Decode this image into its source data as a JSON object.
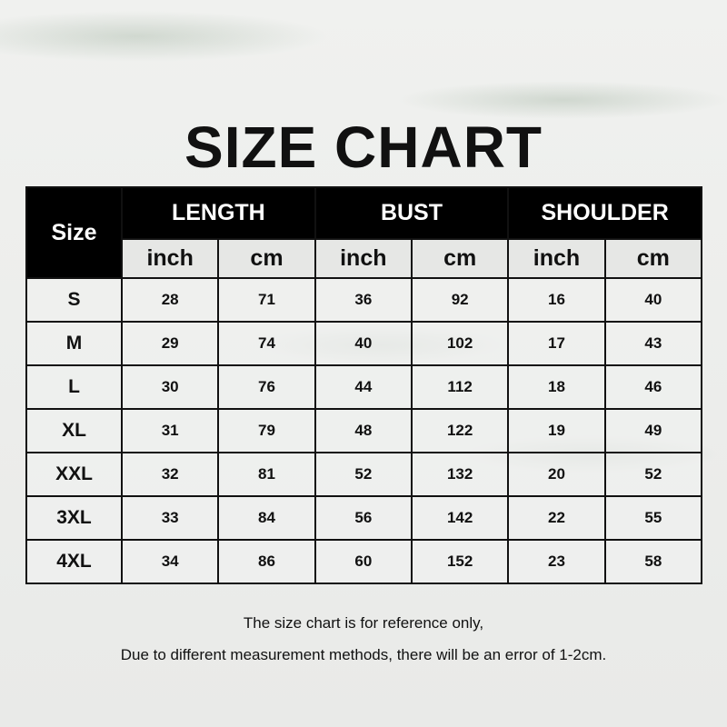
{
  "title": "SIZE CHART",
  "table": {
    "size_header": "Size",
    "groups": [
      "LENGTH",
      "BUST",
      "SHOULDER"
    ],
    "units": [
      "inch",
      "cm",
      "inch",
      "cm",
      "inch",
      "cm"
    ],
    "rows": [
      [
        "S",
        "28",
        "71",
        "36",
        "92",
        "16",
        "40"
      ],
      [
        "M",
        "29",
        "74",
        "40",
        "102",
        "17",
        "43"
      ],
      [
        "L",
        "30",
        "76",
        "44",
        "112",
        "18",
        "46"
      ],
      [
        "XL",
        "31",
        "79",
        "48",
        "122",
        "19",
        "49"
      ],
      [
        "XXL",
        "32",
        "81",
        "52",
        "132",
        "20",
        "52"
      ],
      [
        "3XL",
        "33",
        "84",
        "56",
        "142",
        "22",
        "55"
      ],
      [
        "4XL",
        "34",
        "86",
        "60",
        "152",
        "23",
        "58"
      ]
    ]
  },
  "notes": [
    "The size chart is for reference only,",
    "Due to different measurement methods, there will be an error of 1-2cm."
  ]
}
